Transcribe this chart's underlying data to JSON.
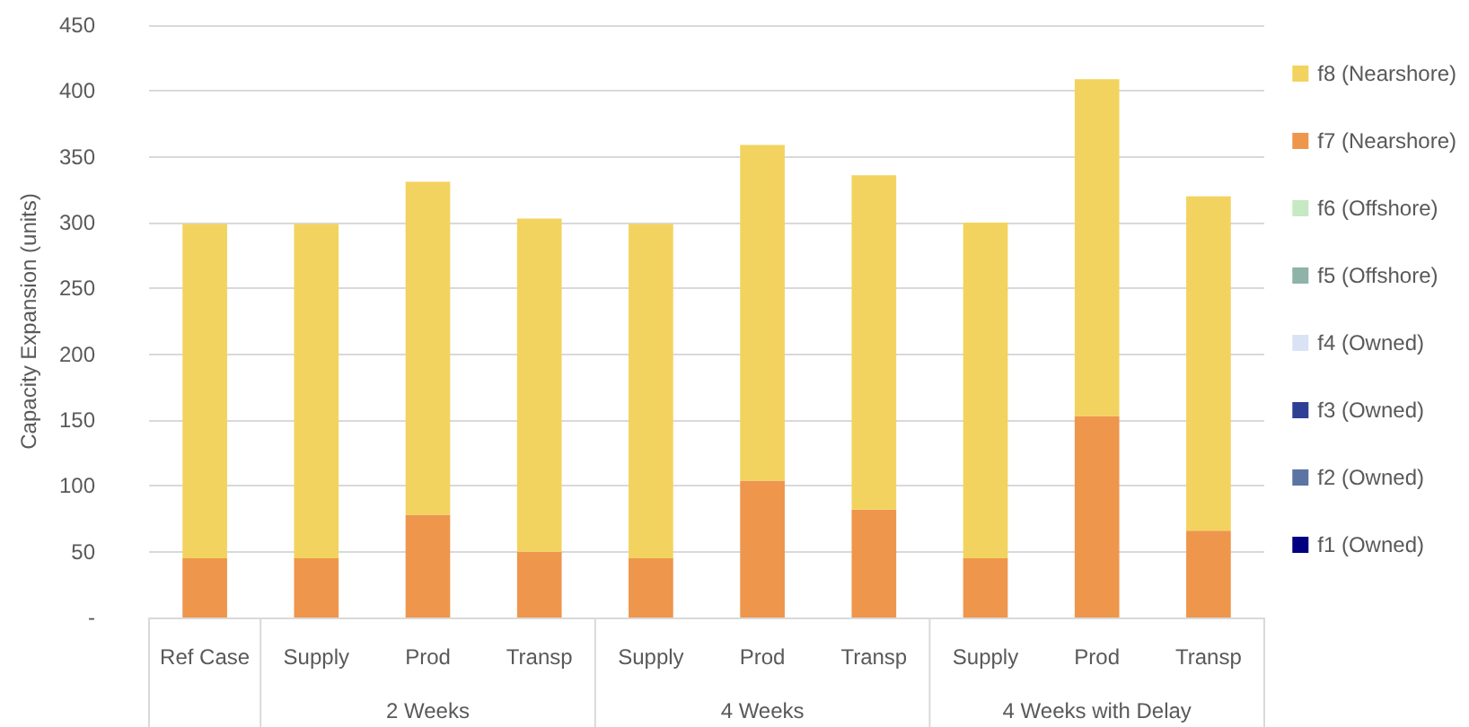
{
  "chart_data": {
    "type": "bar",
    "stacked": true,
    "ylabel": "Capacity Expansion (units)",
    "categories": [
      "Ref Case",
      "Supply",
      "Prod",
      "Transp",
      "Supply",
      "Prod",
      "Transp",
      "Supply",
      "Prod",
      "Transp"
    ],
    "annotations": [
      "2 Weeks",
      "4 Weeks",
      "4 Weeks with Delay"
    ],
    "series": [
      {
        "name": "f1 (Owned)",
        "color": "#000080",
        "values": [
          0,
          0,
          0,
          0,
          0,
          0,
          0,
          0,
          0,
          0
        ]
      },
      {
        "name": "f2 (Owned)",
        "color": "#5b74a3",
        "values": [
          0,
          0,
          0,
          0,
          0,
          0,
          0,
          0,
          0,
          0
        ]
      },
      {
        "name": "f3 (Owned)",
        "color": "#2f3f94",
        "values": [
          0,
          0,
          0,
          0,
          0,
          0,
          0,
          0,
          0,
          0
        ]
      },
      {
        "name": "f4 (Owned)",
        "color": "#dae3f3",
        "values": [
          0,
          0,
          0,
          0,
          0,
          0,
          0,
          0,
          0,
          0
        ]
      },
      {
        "name": "f5 (Offshore)",
        "color": "#8fb2a9",
        "values": [
          0,
          0,
          0,
          0,
          0,
          0,
          0,
          0,
          0,
          0
        ]
      },
      {
        "name": "f6 (Offshore)",
        "color": "#c6e8c2",
        "values": [
          0,
          0,
          0,
          0,
          0,
          0,
          0,
          0,
          0,
          0
        ]
      },
      {
        "name": "f7 (Nearshore)",
        "color": "#ee964c",
        "values": [
          45,
          45,
          78,
          50,
          45,
          104,
          82,
          45,
          153,
          66
        ]
      },
      {
        "name": "f8 (Nearshore)",
        "color": "#f3d35f",
        "values": [
          254,
          254,
          253,
          253,
          254,
          255,
          254,
          255,
          256,
          254
        ]
      }
    ],
    "ylim": [
      0,
      450
    ],
    "yticks": [
      {
        "value": 0,
        "label": "-"
      },
      50,
      100,
      150,
      200,
      250,
      300,
      350,
      400,
      450
    ],
    "grid": "y",
    "legend": "right"
  }
}
